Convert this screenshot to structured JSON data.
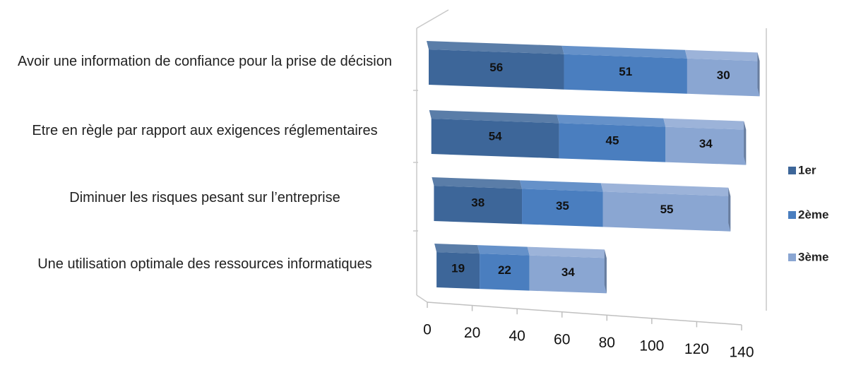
{
  "chart_data": {
    "type": "bar3d_stacked_horizontal",
    "categories": [
      "Avoir une information de confiance pour la prise de décision",
      "Etre en règle par rapport aux exigences réglementaires",
      "Diminuer les risques pesant sur l’entreprise",
      "Une utilisation optimale des ressources informatiques"
    ],
    "series": [
      {
        "name": "1er",
        "color": "#3d6699",
        "values": [
          56,
          54,
          38,
          19
        ]
      },
      {
        "name": "2ème",
        "color": "#4a7ebf",
        "values": [
          51,
          45,
          35,
          22
        ]
      },
      {
        "name": "3ème",
        "color": "#8aa6d2",
        "values": [
          30,
          34,
          55,
          34
        ]
      }
    ],
    "xlim": [
      0,
      140
    ],
    "xticks": [
      0,
      20,
      40,
      60,
      80,
      100,
      120,
      140
    ],
    "legend": "right"
  }
}
